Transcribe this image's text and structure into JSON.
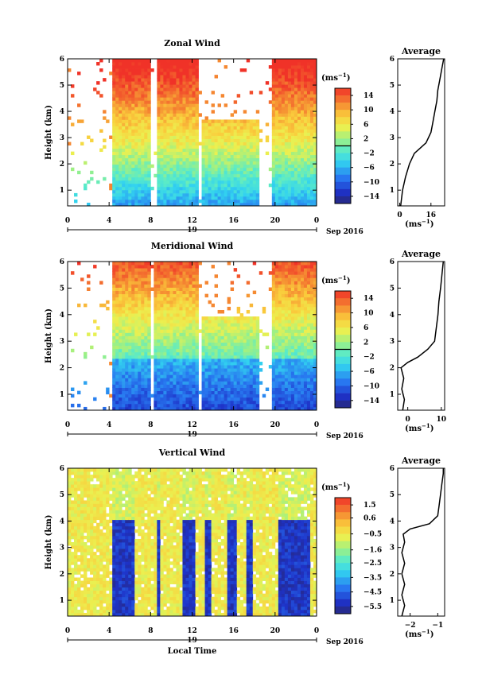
{
  "figure": {
    "date_label": "Sep 2016",
    "day_label": "19",
    "xlabel": "Local Time",
    "ylabel": "Height (km)",
    "unit": "(ms",
    "unit_sup": "−1",
    "unit_close": ")",
    "average_title": "Average"
  },
  "chart_data": [
    {
      "type": "heatmap",
      "title": "Zonal Wind",
      "x_ticks": [
        "0",
        "4",
        "8",
        "12",
        "16",
        "20",
        "0"
      ],
      "x_range": [
        0,
        24
      ],
      "y_ticks": [
        "1",
        "2",
        "3",
        "4",
        "5",
        "6"
      ],
      "y_range": [
        0.4,
        6
      ],
      "colorbar": {
        "ticks": [
          "14",
          "10",
          "6",
          "2",
          "−2",
          "−6",
          "−10",
          "−14"
        ],
        "range": [
          -16,
          16
        ]
      },
      "average_profile": {
        "x_ticks": [
          "0",
          "16"
        ],
        "x_range": [
          -1,
          23
        ],
        "heights_km": [
          0.4,
          1.0,
          1.5,
          2.0,
          2.4,
          2.6,
          2.8,
          3.2,
          3.6,
          4.0,
          4.4,
          4.8,
          5.2,
          5.6,
          6.0
        ],
        "values": [
          0.5,
          1.5,
          3.0,
          5.0,
          7.5,
          10.5,
          13.5,
          16.0,
          17.0,
          18.0,
          19.0,
          19.5,
          20.5,
          21.5,
          22.5
        ]
      }
    },
    {
      "type": "heatmap",
      "title": "Meridional Wind",
      "x_ticks": [
        "0",
        "4",
        "8",
        "12",
        "16",
        "20",
        "0"
      ],
      "x_range": [
        0,
        24
      ],
      "y_ticks": [
        "1",
        "2",
        "3",
        "4",
        "5",
        "6"
      ],
      "y_range": [
        0.4,
        6
      ],
      "colorbar": {
        "ticks": [
          "14",
          "10",
          "6",
          "2",
          "−2",
          "−6",
          "−10",
          "−14"
        ],
        "range": [
          -16,
          16
        ]
      },
      "average_profile": {
        "x_ticks": [
          "0",
          "10"
        ],
        "x_range": [
          -3,
          11
        ],
        "heights_km": [
          0.4,
          0.8,
          1.2,
          1.6,
          2.0,
          2.2,
          2.4,
          2.7,
          3.0,
          3.5,
          4.0,
          4.5,
          5.0,
          5.5,
          6.0
        ],
        "values": [
          -1.5,
          -1.0,
          -1.8,
          -1.2,
          -2.0,
          0.0,
          3.0,
          6.0,
          8.0,
          8.5,
          9.0,
          9.3,
          9.8,
          10.2,
          10.6
        ]
      }
    },
    {
      "type": "heatmap",
      "title": "Vertical Wind",
      "x_ticks": [
        "0",
        "4",
        "8",
        "12",
        "16",
        "20",
        "0"
      ],
      "x_range": [
        0,
        24
      ],
      "y_ticks": [
        "1",
        "2",
        "3",
        "4",
        "5",
        "6"
      ],
      "y_range": [
        0.4,
        6
      ],
      "colorbar": {
        "ticks": [
          "1.5",
          "0.6",
          "−0.5",
          "−1.6",
          "−2.5",
          "−3.5",
          "−4.5",
          "−5.5"
        ],
        "range": [
          -6,
          2
        ]
      },
      "average_profile": {
        "x_ticks": [
          "−2",
          "−1"
        ],
        "x_range": [
          -2.45,
          -0.75
        ],
        "heights_km": [
          0.4,
          0.8,
          1.2,
          1.6,
          2.0,
          2.4,
          2.8,
          3.2,
          3.5,
          3.7,
          3.9,
          4.2,
          4.6,
          5.0,
          5.4,
          5.8,
          6.0
        ],
        "values": [
          -2.3,
          -2.2,
          -2.3,
          -2.2,
          -2.3,
          -2.2,
          -2.3,
          -2.2,
          -2.25,
          -2.0,
          -1.3,
          -1.0,
          -0.95,
          -0.9,
          -0.85,
          -0.8,
          -0.8
        ]
      }
    }
  ]
}
